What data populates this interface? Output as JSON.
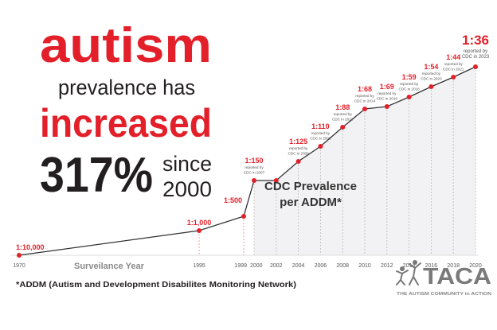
{
  "headline": {
    "line1": "autism",
    "line2": "prevalence has",
    "line3": "increased",
    "percent": "317%",
    "since": "since",
    "since_year": "2000"
  },
  "colors": {
    "accent": "#e3202a",
    "text": "#231f20",
    "line": "#333333",
    "shade": "#f2f2f4",
    "muted": "#8a8a8a"
  },
  "chart_data": {
    "type": "line",
    "xlabel": "Surveilance Year",
    "ylabel": "",
    "annotation": "CDC Prevalence per ADDM*",
    "annotation_lines": [
      "CDC Prevalence",
      "per ADDM*"
    ],
    "x_ticks": [
      "1970",
      "1995",
      "1999",
      "2000",
      "2002",
      "2004",
      "2006",
      "2008",
      "2010",
      "2012",
      "2014",
      "2016",
      "2018",
      "2020"
    ],
    "points": [
      {
        "x": 1970,
        "label": "1:10,000",
        "prevalence": 10000,
        "note": ""
      },
      {
        "x": 1995,
        "label": "1:1,000",
        "prevalence": 1000,
        "note": ""
      },
      {
        "x": 1999,
        "label": "1:500",
        "prevalence": 500,
        "note": ""
      },
      {
        "x": 2000,
        "label": "1:150",
        "prevalence": 150,
        "note": [
          "reported by",
          "CDC in 2007"
        ]
      },
      {
        "x": 2002,
        "label": "",
        "prevalence": 150,
        "note": ""
      },
      {
        "x": 2004,
        "label": "1:125",
        "prevalence": 125,
        "note": [
          "reported by",
          "CDC in 2009"
        ]
      },
      {
        "x": 2006,
        "label": "1:110",
        "prevalence": 110,
        "note": [
          "reported by",
          "CDC in 2009"
        ]
      },
      {
        "x": 2008,
        "label": "1:88",
        "prevalence": 88,
        "note": [
          "reported by",
          "CDC in 2012"
        ]
      },
      {
        "x": 2010,
        "label": "1:68",
        "prevalence": 68,
        "note": [
          "reported by",
          "CDC in 2014"
        ]
      },
      {
        "x": 2012,
        "label": "1:69",
        "prevalence": 69,
        "note": [
          "reported by",
          "CDC in 2016"
        ]
      },
      {
        "x": 2014,
        "label": "1:59",
        "prevalence": 59,
        "note": [
          "reported by",
          "CDC in 2018"
        ]
      },
      {
        "x": 2016,
        "label": "1:54",
        "prevalence": 54,
        "note": [
          "reported by",
          "CDC in 2020"
        ]
      },
      {
        "x": 2018,
        "label": "1:44",
        "prevalence": 44,
        "note": [
          "reported by",
          "CDC in 2021"
        ]
      },
      {
        "x": 2020,
        "label": "1:36",
        "prevalence": 36,
        "note": [
          "reported by",
          "CDC in 2023"
        ]
      }
    ],
    "shaded_region": [
      2000,
      2020
    ],
    "grid": "vertical dashed"
  },
  "footnote": "*ADDM (Autism and Development Disabilites Monitoring Network)",
  "logo": {
    "name": "TACA",
    "tagline": "THE AUTISM COMMUNITY in ACTION",
    "icon": "people-figures-icon"
  }
}
